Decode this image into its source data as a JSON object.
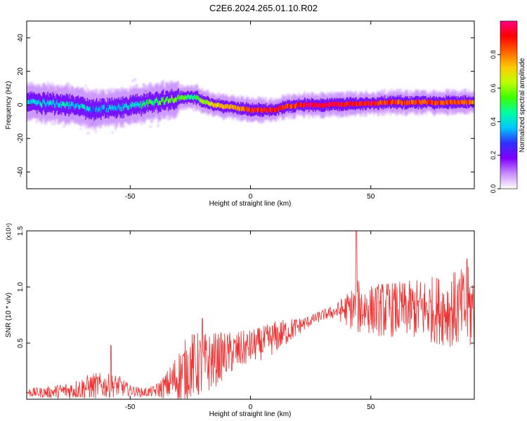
{
  "figure": {
    "title": "C2E6.2024.265.01.10.R02"
  },
  "chart_data": [
    {
      "type": "heatmap",
      "title": "",
      "xlabel": "Height of straight line (km)",
      "ylabel": "Frequency (Hz)",
      "xlim": [
        -93,
        93
      ],
      "ylim": [
        -50,
        50
      ],
      "xticks": [
        "-50",
        "0",
        "50"
      ],
      "yticks": [
        "-40",
        "-20",
        "0",
        "20",
        "40"
      ],
      "grid": false,
      "ridge": {
        "x": [
          -93,
          -85,
          -75,
          -65,
          -58,
          -50,
          -45,
          -40,
          -35,
          -30,
          -25,
          -22,
          -20,
          -15,
          -10,
          -5,
          0,
          5,
          10,
          15,
          20,
          25,
          30,
          40,
          50,
          60,
          70,
          80,
          93
        ],
        "freq": [
          1,
          1,
          0,
          -3,
          -2,
          -1,
          0,
          2,
          3,
          4,
          5,
          4,
          2,
          0,
          -1,
          -2,
          -3,
          -3,
          -3,
          -1,
          0,
          0,
          0,
          0.5,
          1,
          1.5,
          1.5,
          1.5,
          1.5
        ],
        "amplitude": [
          0.4,
          0.4,
          0.4,
          0.35,
          0.35,
          0.4,
          0.45,
          0.5,
          0.55,
          0.55,
          0.5,
          0.5,
          0.6,
          0.7,
          0.75,
          0.8,
          0.85,
          0.9,
          0.9,
          0.85,
          0.9,
          0.95,
          0.95,
          0.9,
          0.9,
          0.85,
          0.85,
          0.85,
          0.8
        ]
      },
      "colorbar": {
        "label": "Normalized spectral amplitude",
        "range": [
          0,
          1
        ],
        "ticks": [
          "0.0",
          "0.2",
          "0.4",
          "0.6",
          "0.8"
        ],
        "colors": [
          "#ffffff",
          "#c88cff",
          "#8000ff",
          "#3030ff",
          "#00c8ff",
          "#00ffa0",
          "#40ff00",
          "#c0ff00",
          "#ffc800",
          "#ff6000",
          "#ff0000",
          "#ff0080"
        ]
      }
    },
    {
      "type": "line",
      "title": "",
      "xlabel": "Height of straight line (km)",
      "ylabel": "SNR (10 * v/v)",
      "multiplier": "(x10⁴)",
      "xlim": [
        -93,
        93
      ],
      "ylim": [
        0,
        1.5
      ],
      "xticks": [
        "-50",
        "0",
        "50"
      ],
      "yticks": [
        "0.5",
        "1.0",
        "1.5"
      ],
      "grid": false,
      "color": "#f03232",
      "series": [
        {
          "x": [
            -93,
            -85,
            -75,
            -65,
            -55,
            -50,
            -45,
            -40,
            -35,
            -30,
            -25,
            -20,
            -15,
            -10,
            -5,
            0,
            5,
            10,
            15,
            20,
            25,
            30,
            35,
            40,
            45,
            50,
            55,
            60,
            65,
            70,
            75,
            80,
            85,
            93
          ],
          "y": [
            0.06,
            0.06,
            0.08,
            0.12,
            0.12,
            0.08,
            0.06,
            0.07,
            0.12,
            0.2,
            0.3,
            0.3,
            0.35,
            0.4,
            0.43,
            0.47,
            0.5,
            0.55,
            0.6,
            0.65,
            0.7,
            0.75,
            0.78,
            0.8,
            0.82,
            0.8,
            0.8,
            0.8,
            0.8,
            0.8,
            0.8,
            0.8,
            0.8,
            0.8
          ],
          "spread": [
            0.04,
            0.05,
            0.08,
            0.12,
            0.1,
            0.05,
            0.04,
            0.05,
            0.12,
            0.25,
            0.3,
            0.3,
            0.25,
            0.2,
            0.18,
            0.15,
            0.15,
            0.15,
            0.12,
            0.08,
            0.05,
            0.05,
            0.06,
            0.15,
            0.25,
            0.22,
            0.25,
            0.25,
            0.25,
            0.28,
            0.3,
            0.32,
            0.35,
            0.4
          ],
          "peaks": [
            {
              "x": -58,
              "y": 0.48
            },
            {
              "x": -20,
              "y": 0.72
            },
            {
              "x": 44,
              "y": 1.5
            },
            {
              "x": 90,
              "y": 1.25
            }
          ]
        }
      ]
    }
  ]
}
